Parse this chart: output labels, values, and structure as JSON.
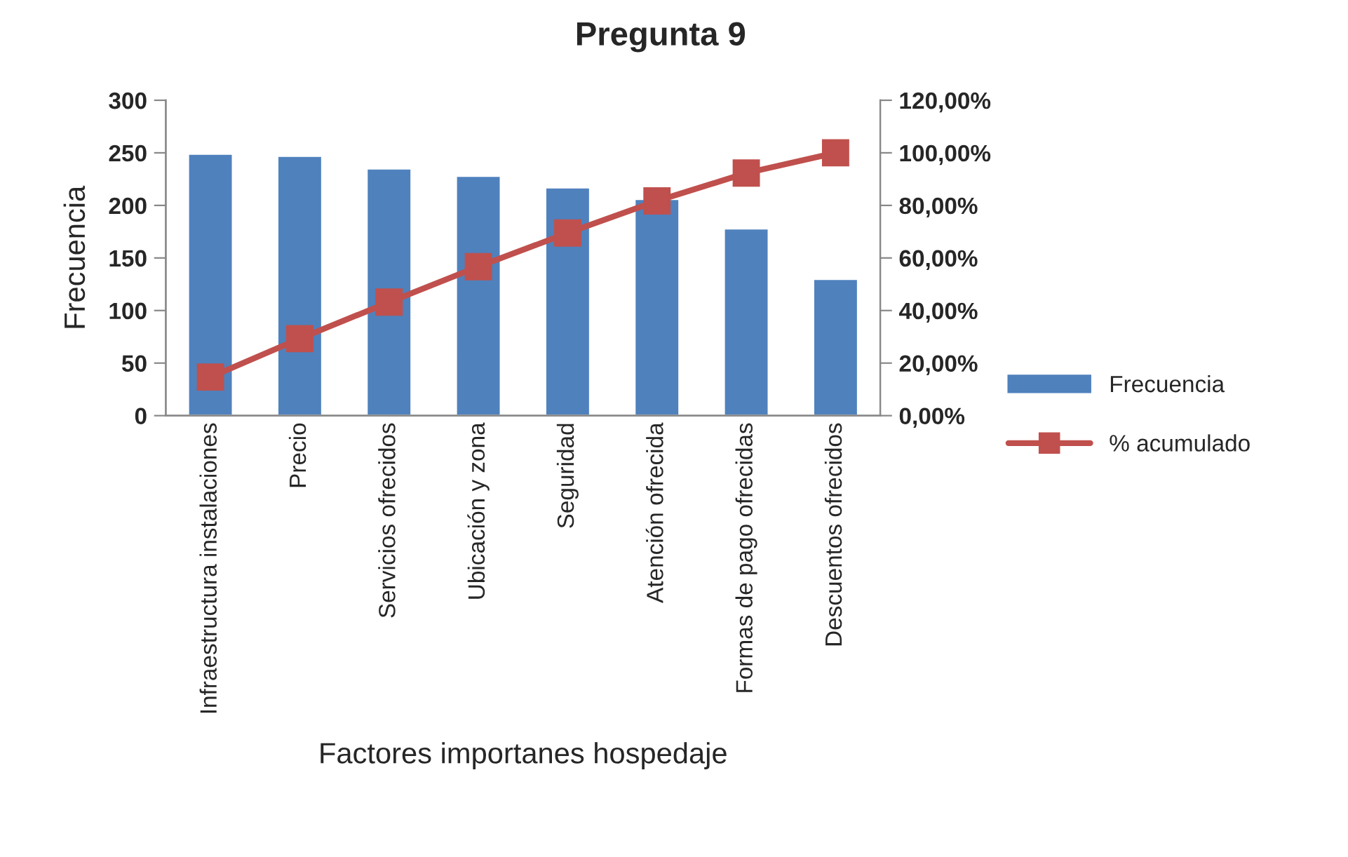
{
  "chart_data": {
    "type": "bar",
    "title": "Pregunta 9",
    "xlabel": "Factores importanes hospedaje",
    "ylabel": "Frecuencia",
    "categories": [
      "Infraestructura instalaciones",
      "Precio",
      "Servicios ofrecidos",
      "Ubicación y zona",
      "Seguridad",
      "Atención ofrecida",
      "Formas de pago ofrecidas",
      "Descuentos ofrecidos"
    ],
    "series": [
      {
        "name": "Frecuencia",
        "color": "#4f81bd",
        "values": [
          249,
          247,
          235,
          228,
          217,
          206,
          178,
          130
        ]
      },
      {
        "name": "% acumulado",
        "type": "line",
        "axis": "y2",
        "color": "#c0504d",
        "marker": "square",
        "values": [
          14.7,
          29.3,
          43.2,
          56.7,
          69.5,
          81.7,
          92.3,
          100
        ]
      }
    ],
    "ylim": [
      0,
      300
    ],
    "yticks": [
      0,
      50,
      100,
      150,
      200,
      250,
      300
    ],
    "y2lim": [
      0,
      120
    ],
    "y2ticks": [
      {
        "value": 0,
        "label": "0,00%"
      },
      {
        "value": 20,
        "label": "20,00%"
      },
      {
        "value": 40,
        "label": "40,00%"
      },
      {
        "value": 60,
        "label": "60,00%"
      },
      {
        "value": 80,
        "label": "80,00%"
      },
      {
        "value": 100,
        "label": "100,00%"
      },
      {
        "value": 120,
        "label": "120,00%"
      }
    ],
    "grid": false,
    "legend": "right"
  }
}
